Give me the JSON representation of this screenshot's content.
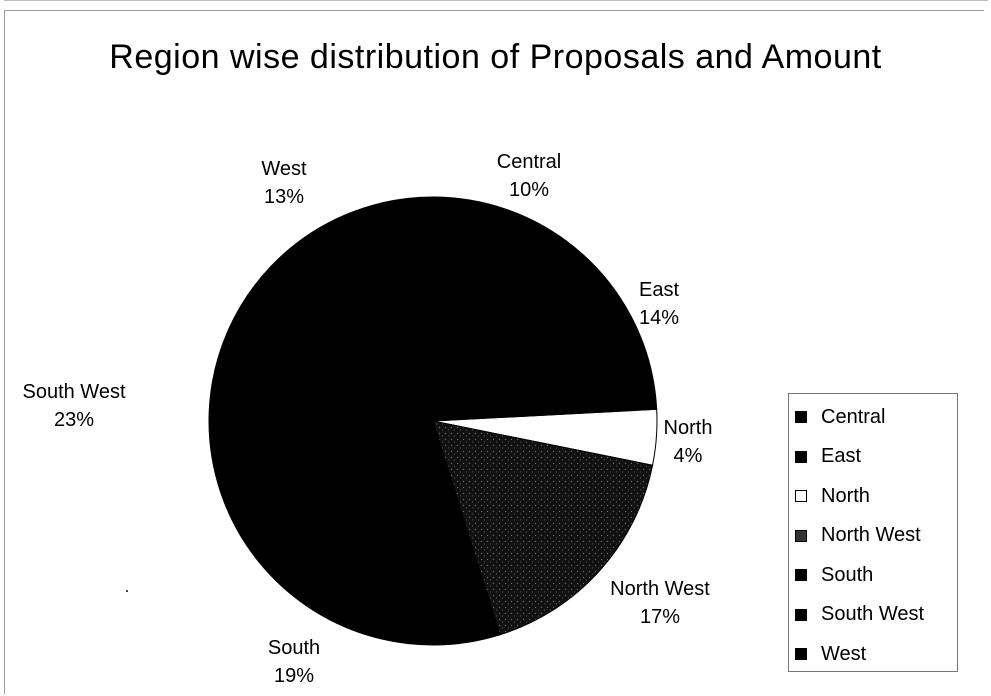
{
  "chart_data": {
    "type": "pie",
    "title": "Region wise distribution of Proposals and Amount",
    "slices": [
      {
        "label": "North",
        "percent_label": "4%",
        "value": 4,
        "color": "#ffffff"
      },
      {
        "label": "North West",
        "percent_label": "17%",
        "value": 17,
        "color": "#1a1a1a"
      },
      {
        "label": "South",
        "percent_label": "19%",
        "value": 19,
        "color": "#000000"
      },
      {
        "label": "South West",
        "percent_label": "23%",
        "value": 23,
        "color": "#000000"
      },
      {
        "label": "West",
        "percent_label": "13%",
        "value": 13,
        "color": "#000000"
      },
      {
        "label": "Central",
        "percent_label": "10%",
        "value": 10,
        "color": "#000000"
      },
      {
        "label": "East",
        "percent_label": "14%",
        "value": 14,
        "color": "#000000"
      }
    ],
    "legend": {
      "placement": "right",
      "entries": [
        {
          "label": "Central",
          "color": "#000000"
        },
        {
          "label": "East",
          "color": "#000000"
        },
        {
          "label": "North",
          "color": "#ffffff"
        },
        {
          "label": "North West",
          "color": "#333333"
        },
        {
          "label": "South",
          "color": "#000000"
        },
        {
          "label": "South West",
          "color": "#000000"
        },
        {
          "label": "West",
          "color": "#000000"
        }
      ]
    }
  }
}
